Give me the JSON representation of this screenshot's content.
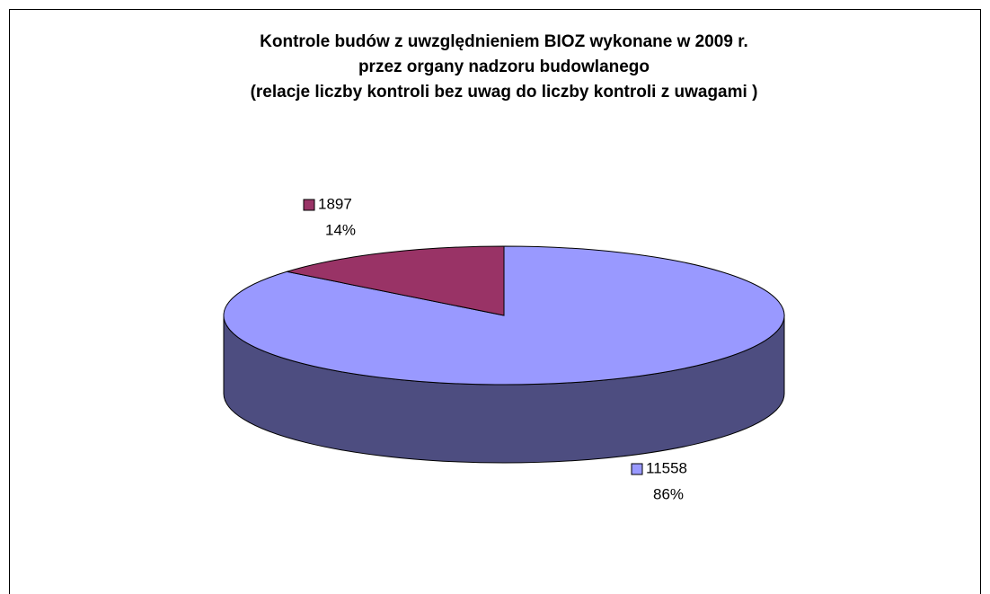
{
  "chart_data": {
    "type": "pie3d",
    "title": [
      "Kontrole budów z uwzględnieniem BIOZ wykonane w 2009 r.",
      "przez organy nadzoru budowlanego",
      "(relacje liczby kontroli bez uwag do liczby kontroli z uwagami )"
    ],
    "values": [
      11558,
      1897
    ],
    "percent_labels": [
      "86%",
      "14%"
    ],
    "colors": [
      "#9999ff",
      "#993366"
    ],
    "side_colors": [
      "#4d4d80",
      "#4d1a33"
    ]
  }
}
